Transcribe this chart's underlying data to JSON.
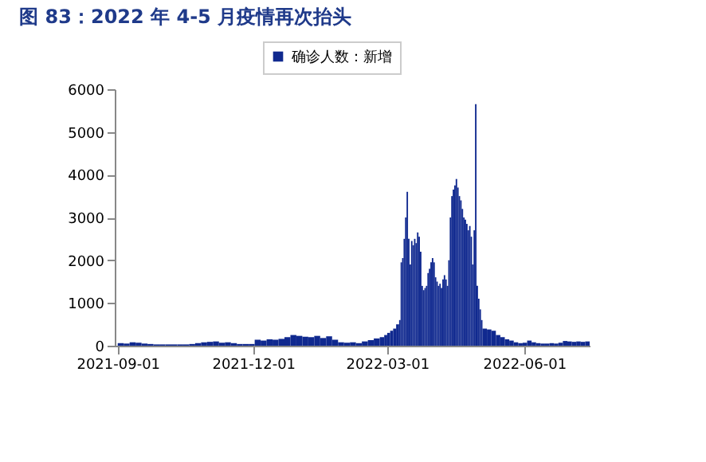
{
  "chart_data": {
    "type": "bar",
    "title": "图 83：2022 年 4-5 月疫情再次抬头",
    "x": [
      "2021-09-01",
      "2021-09-05",
      "2021-09-09",
      "2021-09-13",
      "2021-09-17",
      "2021-09-21",
      "2021-09-25",
      "2021-09-29",
      "2021-10-03",
      "2021-10-07",
      "2021-10-11",
      "2021-10-15",
      "2021-10-19",
      "2021-10-23",
      "2021-10-27",
      "2021-10-31",
      "2021-11-04",
      "2021-11-08",
      "2021-11-12",
      "2021-11-16",
      "2021-11-20",
      "2021-11-24",
      "2021-11-28",
      "2021-12-02",
      "2021-12-06",
      "2021-12-10",
      "2021-12-14",
      "2021-12-18",
      "2021-12-22",
      "2021-12-26",
      "2021-12-30",
      "2022-01-03",
      "2022-01-07",
      "2022-01-11",
      "2022-01-15",
      "2022-01-19",
      "2022-01-23",
      "2022-01-27",
      "2022-01-31",
      "2022-02-04",
      "2022-02-08",
      "2022-02-12",
      "2022-02-16",
      "2022-02-20",
      "2022-02-24",
      "2022-02-27",
      "2022-03-01",
      "2022-03-03",
      "2022-03-05",
      "2022-03-07",
      "2022-03-09",
      "2022-03-10",
      "2022-03-11",
      "2022-03-12",
      "2022-03-13",
      "2022-03-14",
      "2022-03-15",
      "2022-03-16",
      "2022-03-17",
      "2022-03-18",
      "2022-03-19",
      "2022-03-20",
      "2022-03-21",
      "2022-03-22",
      "2022-03-23",
      "2022-03-24",
      "2022-03-25",
      "2022-03-26",
      "2022-03-27",
      "2022-03-28",
      "2022-03-29",
      "2022-03-30",
      "2022-03-31",
      "2022-04-01",
      "2022-04-02",
      "2022-04-03",
      "2022-04-04",
      "2022-04-05",
      "2022-04-06",
      "2022-04-07",
      "2022-04-08",
      "2022-04-09",
      "2022-04-10",
      "2022-04-11",
      "2022-04-12",
      "2022-04-13",
      "2022-04-14",
      "2022-04-15",
      "2022-04-16",
      "2022-04-17",
      "2022-04-18",
      "2022-04-19",
      "2022-04-20",
      "2022-04-21",
      "2022-04-22",
      "2022-04-23",
      "2022-04-24",
      "2022-04-25",
      "2022-04-26",
      "2022-04-27",
      "2022-04-28",
      "2022-04-29",
      "2022-04-30",
      "2022-05-01",
      "2022-05-02",
      "2022-05-03",
      "2022-05-04",
      "2022-05-07",
      "2022-05-10",
      "2022-05-13",
      "2022-05-16",
      "2022-05-19",
      "2022-05-22",
      "2022-05-25",
      "2022-05-28",
      "2022-05-31",
      "2022-06-03",
      "2022-06-06",
      "2022-06-09",
      "2022-06-12",
      "2022-06-15",
      "2022-06-18",
      "2022-06-21",
      "2022-06-24",
      "2022-06-27",
      "2022-06-30",
      "2022-07-03",
      "2022-07-06",
      "2022-07-09",
      "2022-07-12"
    ],
    "series": [
      {
        "name": "确诊人数：新增",
        "color": "#10298f",
        "values": [
          60,
          50,
          80,
          70,
          50,
          40,
          30,
          30,
          30,
          30,
          30,
          30,
          40,
          60,
          80,
          90,
          100,
          70,
          80,
          60,
          40,
          40,
          40,
          140,
          120,
          150,
          140,
          160,
          200,
          250,
          230,
          210,
          200,
          230,
          180,
          220,
          140,
          80,
          70,
          80,
          60,
          100,
          130,
          170,
          200,
          250,
          300,
          350,
          400,
          500,
          600,
          1950,
          2050,
          2500,
          3000,
          3600,
          2500,
          1900,
          2450,
          2350,
          2500,
          2400,
          2650,
          2550,
          2200,
          1400,
          1300,
          1350,
          1400,
          1700,
          1800,
          1950,
          2050,
          1950,
          1600,
          1500,
          1400,
          1450,
          1350,
          1550,
          1650,
          1550,
          1400,
          2000,
          3000,
          3500,
          3650,
          3750,
          3900,
          3700,
          3500,
          3400,
          3200,
          3000,
          2950,
          2850,
          2700,
          2800,
          2550,
          1900,
          2700,
          5650,
          1400,
          1100,
          850,
          600,
          400,
          380,
          350,
          250,
          200,
          150,
          120,
          80,
          60,
          70,
          120,
          80,
          60,
          50,
          50,
          60,
          50,
          70,
          110,
          100,
          90,
          100,
          90,
          100
        ]
      }
    ],
    "xlim": [
      "2021-08-30",
      "2022-07-15"
    ],
    "xticks": [
      {
        "value": "2021-09-01",
        "label": "2021-09-01"
      },
      {
        "value": "2021-12-01",
        "label": "2021-12-01"
      },
      {
        "value": "2022-03-01",
        "label": "2022-03-01"
      },
      {
        "value": "2022-06-01",
        "label": "2022-06-01"
      }
    ],
    "ylim": [
      0,
      6000
    ],
    "yticks": [
      0,
      1000,
      2000,
      3000,
      4000,
      5000,
      6000
    ],
    "grid": false,
    "legend": "top"
  }
}
